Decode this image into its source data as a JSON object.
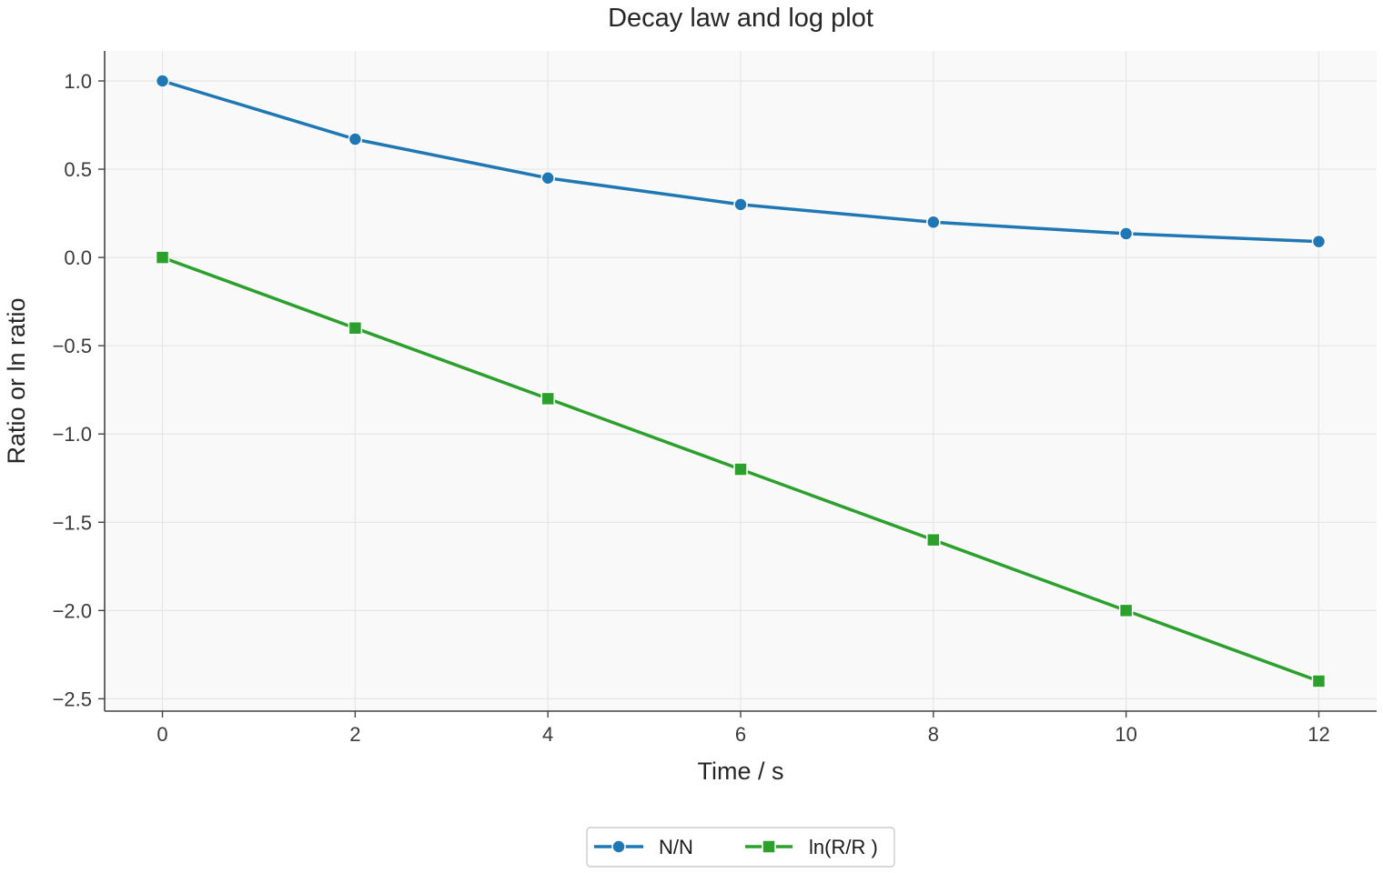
{
  "chart_data": {
    "type": "line",
    "title": "Decay law and log plot",
    "xlabel": "Time / s",
    "ylabel": "Ratio or ln ratio",
    "xlim": [
      -0.6,
      12.6
    ],
    "ylim": [
      -2.57,
      1.17
    ],
    "xticks": [
      0,
      2,
      4,
      6,
      8,
      10,
      12
    ],
    "yticks": [
      1.0,
      0.5,
      0.0,
      -0.5,
      -1.0,
      -1.5,
      -2.0,
      -2.5
    ],
    "xtick_labels": [
      "0",
      "2",
      "4",
      "6",
      "8",
      "10",
      "12"
    ],
    "ytick_labels": [
      "1.0",
      "0.5",
      "0.0",
      "−0.5",
      "−1.0",
      "−1.5",
      "−2.0",
      "−2.5"
    ],
    "grid": true,
    "legend_position": "bottom-center",
    "x": [
      0,
      2,
      4,
      6,
      8,
      10,
      12
    ],
    "series": [
      {
        "name": "N/N",
        "values": [
          1.0,
          0.67,
          0.45,
          0.3,
          0.2,
          0.135,
          0.09
        ],
        "color": "#1f77b4",
        "marker": "circle"
      },
      {
        "name": "ln(R/R )",
        "values": [
          0.0,
          -0.4,
          -0.8,
          -1.2,
          -1.6,
          -2.0,
          -2.4
        ],
        "color": "#2ca02c",
        "marker": "square"
      }
    ]
  }
}
